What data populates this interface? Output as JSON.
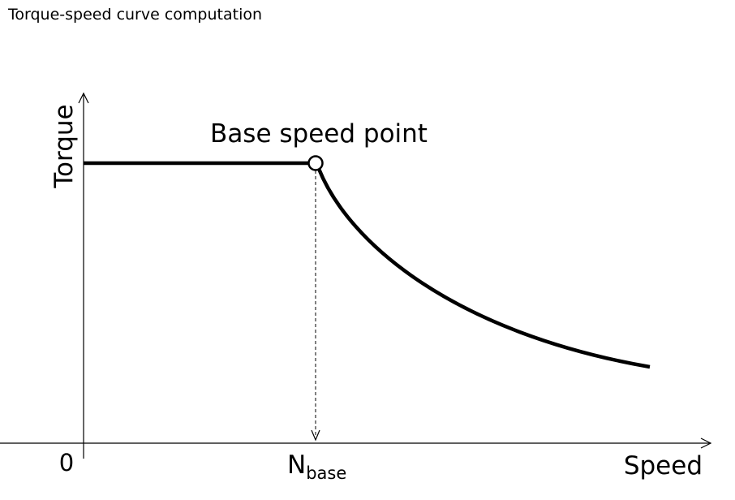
{
  "title": "Torque-speed curve computation",
  "diagram": {
    "y_axis_label": "Torque",
    "x_axis_label": "Speed",
    "origin_label": "0",
    "base_speed_label_main": "N",
    "base_speed_label_sub": "base",
    "point_label": "Base speed point"
  },
  "colors": {
    "line": "#000000",
    "background": "#ffffff"
  }
}
